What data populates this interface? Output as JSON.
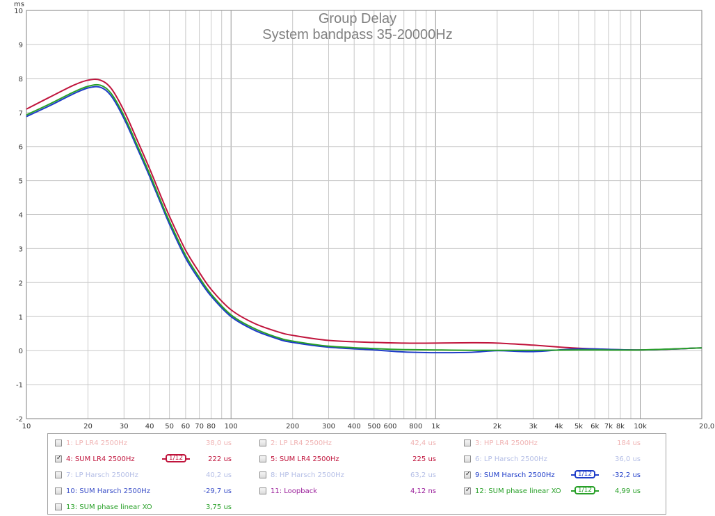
{
  "chart_data": {
    "type": "line",
    "title": "Group Delay",
    "subtitle": "System bandpass 35-20000Hz",
    "ylabel": "ms",
    "xlim": [
      10,
      20000
    ],
    "ylim": [
      -2,
      10
    ],
    "x_scale": "log",
    "grid": true,
    "x_tick_labels": [
      {
        "v": 10,
        "t": "10"
      },
      {
        "v": 20,
        "t": "20"
      },
      {
        "v": 30,
        "t": "30"
      },
      {
        "v": 40,
        "t": "40"
      },
      {
        "v": 50,
        "t": "50"
      },
      {
        "v": 60,
        "t": "60"
      },
      {
        "v": 70,
        "t": "70"
      },
      {
        "v": 80,
        "t": "80"
      },
      {
        "v": 100,
        "t": "100"
      },
      {
        "v": 200,
        "t": "200"
      },
      {
        "v": 300,
        "t": "300"
      },
      {
        "v": 400,
        "t": "400"
      },
      {
        "v": 500,
        "t": "500"
      },
      {
        "v": 600,
        "t": "600"
      },
      {
        "v": 800,
        "t": "800"
      },
      {
        "v": 1000,
        "t": "1k"
      },
      {
        "v": 2000,
        "t": "2k"
      },
      {
        "v": 3000,
        "t": "3k"
      },
      {
        "v": 4000,
        "t": "4k"
      },
      {
        "v": 5000,
        "t": "5k"
      },
      {
        "v": 6000,
        "t": "6k"
      },
      {
        "v": 7000,
        "t": "7k"
      },
      {
        "v": 8000,
        "t": "8k"
      },
      {
        "v": 10000,
        "t": "10k"
      },
      {
        "v": 20000,
        "t": "20,0k Hz"
      }
    ],
    "y_tick_labels": [
      "-2",
      "-1",
      "0",
      "1",
      "2",
      "3",
      "4",
      "5",
      "6",
      "7",
      "8",
      "9",
      "10"
    ],
    "series": [
      {
        "name": "4: SUM LR4 2500Hz",
        "color": "#c0143c",
        "x": [
          10,
          13,
          17,
          20,
          23,
          26,
          30,
          35,
          40,
          45,
          50,
          60,
          70,
          80,
          100,
          130,
          170,
          200,
          300,
          500,
          700,
          1000,
          1500,
          2000,
          3000,
          5000,
          10000,
          20000
        ],
        "y": [
          7.1,
          7.45,
          7.8,
          7.95,
          7.95,
          7.7,
          7.05,
          6.15,
          5.35,
          4.6,
          3.95,
          2.95,
          2.3,
          1.8,
          1.2,
          0.8,
          0.55,
          0.45,
          0.3,
          0.24,
          0.22,
          0.22,
          0.23,
          0.22,
          0.16,
          0.07,
          0.02,
          0.08
        ]
      },
      {
        "name": "9: SUM Harsch 2500Hz",
        "color": "#1e3cc8",
        "x": [
          10,
          13,
          17,
          20,
          23,
          26,
          30,
          35,
          40,
          45,
          50,
          60,
          70,
          80,
          100,
          130,
          170,
          200,
          300,
          500,
          700,
          1000,
          1500,
          2000,
          3000,
          5000,
          10000,
          20000
        ],
        "y": [
          6.88,
          7.2,
          7.55,
          7.72,
          7.74,
          7.48,
          6.82,
          5.92,
          5.12,
          4.38,
          3.72,
          2.72,
          2.08,
          1.6,
          1.0,
          0.6,
          0.34,
          0.24,
          0.1,
          0.02,
          -0.04,
          -0.06,
          -0.05,
          0.0,
          -0.03,
          0.05,
          0.02,
          0.08
        ]
      },
      {
        "name": "12: SUM phase linear XO",
        "color": "#28a028",
        "x": [
          10,
          13,
          17,
          20,
          23,
          26,
          30,
          35,
          40,
          45,
          50,
          60,
          70,
          80,
          100,
          130,
          170,
          200,
          300,
          500,
          700,
          1000,
          1500,
          2000,
          3000,
          5000,
          10000,
          20000
        ],
        "y": [
          6.93,
          7.25,
          7.6,
          7.77,
          7.8,
          7.55,
          6.9,
          6.0,
          5.2,
          4.45,
          3.8,
          2.8,
          2.15,
          1.66,
          1.05,
          0.65,
          0.38,
          0.28,
          0.13,
          0.06,
          0.03,
          0.02,
          0.01,
          0.01,
          0.01,
          0.02,
          0.02,
          0.08
        ]
      }
    ]
  },
  "legend": {
    "items": [
      {
        "label": "1: LP LR4 2500Hz",
        "value": "38,0 us",
        "checked": false,
        "color": "#f0b4b4",
        "smoothing": ""
      },
      {
        "label": "2: LP LR4 2500Hz",
        "value": "42,4 us",
        "checked": false,
        "color": "#f0b4b4",
        "smoothing": ""
      },
      {
        "label": "3: HP LR4 2500Hz",
        "value": "184 us",
        "checked": false,
        "color": "#f0b4b4",
        "smoothing": ""
      },
      {
        "label": "4: SUM LR4 2500Hz",
        "value": "222 us",
        "checked": true,
        "color": "#c0143c",
        "smoothing": "1/12"
      },
      {
        "label": "5: SUM LR4 2500Hz",
        "value": "225 us",
        "checked": false,
        "color": "#c0143c",
        "smoothing": ""
      },
      {
        "label": "6: LP Harsch 2500Hz",
        "value": "36,0 us",
        "checked": false,
        "color": "#b4bee6",
        "smoothing": ""
      },
      {
        "label": "7: LP Harsch 2500Hz",
        "value": "40,2 us",
        "checked": false,
        "color": "#b4bee6",
        "smoothing": ""
      },
      {
        "label": "8: HP Harsch 2500Hz",
        "value": "63,2 us",
        "checked": false,
        "color": "#b4bee6",
        "smoothing": ""
      },
      {
        "label": "9: SUM Harsch 2500Hz",
        "value": "-32,2 us",
        "checked": true,
        "color": "#1e3cc8",
        "smoothing": "1/12"
      },
      {
        "label": "10: SUM Harsch 2500Hz",
        "value": "-29,7 us",
        "checked": false,
        "color": "#3c50c8",
        "smoothing": ""
      },
      {
        "label": "11: Loopback",
        "value": "4,12 ns",
        "checked": false,
        "color": "#9a1e9a",
        "smoothing": ""
      },
      {
        "label": "12: SUM phase linear XO",
        "value": "4,99 us",
        "checked": true,
        "color": "#28a028",
        "smoothing": "1/12"
      },
      {
        "label": "13: SUM phase linear XO",
        "value": "3,75 us",
        "checked": false,
        "color": "#28a028",
        "smoothing": ""
      }
    ]
  }
}
